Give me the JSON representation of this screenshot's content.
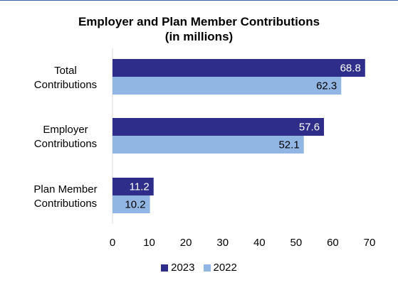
{
  "chart_data": {
    "type": "bar",
    "orientation": "horizontal",
    "title_line1": "Employer and Plan Member Contributions",
    "title_line2": "(in millions)",
    "categories": [
      [
        "Total",
        "Contributions"
      ],
      [
        "Employer",
        "Contributions"
      ],
      [
        "Plan Member",
        "Contributions"
      ]
    ],
    "series": [
      {
        "name": "2023",
        "color": "#2e2e8a",
        "label_color": "#ffffff",
        "values": [
          68.8,
          57.6,
          11.2
        ]
      },
      {
        "name": "2022",
        "color": "#92b6e4",
        "label_color": "#000000",
        "values": [
          62.3,
          52.1,
          10.2
        ]
      }
    ],
    "xlim": [
      0,
      70
    ],
    "xticks": [
      0,
      10,
      20,
      30,
      40,
      50,
      60,
      70
    ],
    "gridlines": false,
    "legend_position": "bottom"
  }
}
